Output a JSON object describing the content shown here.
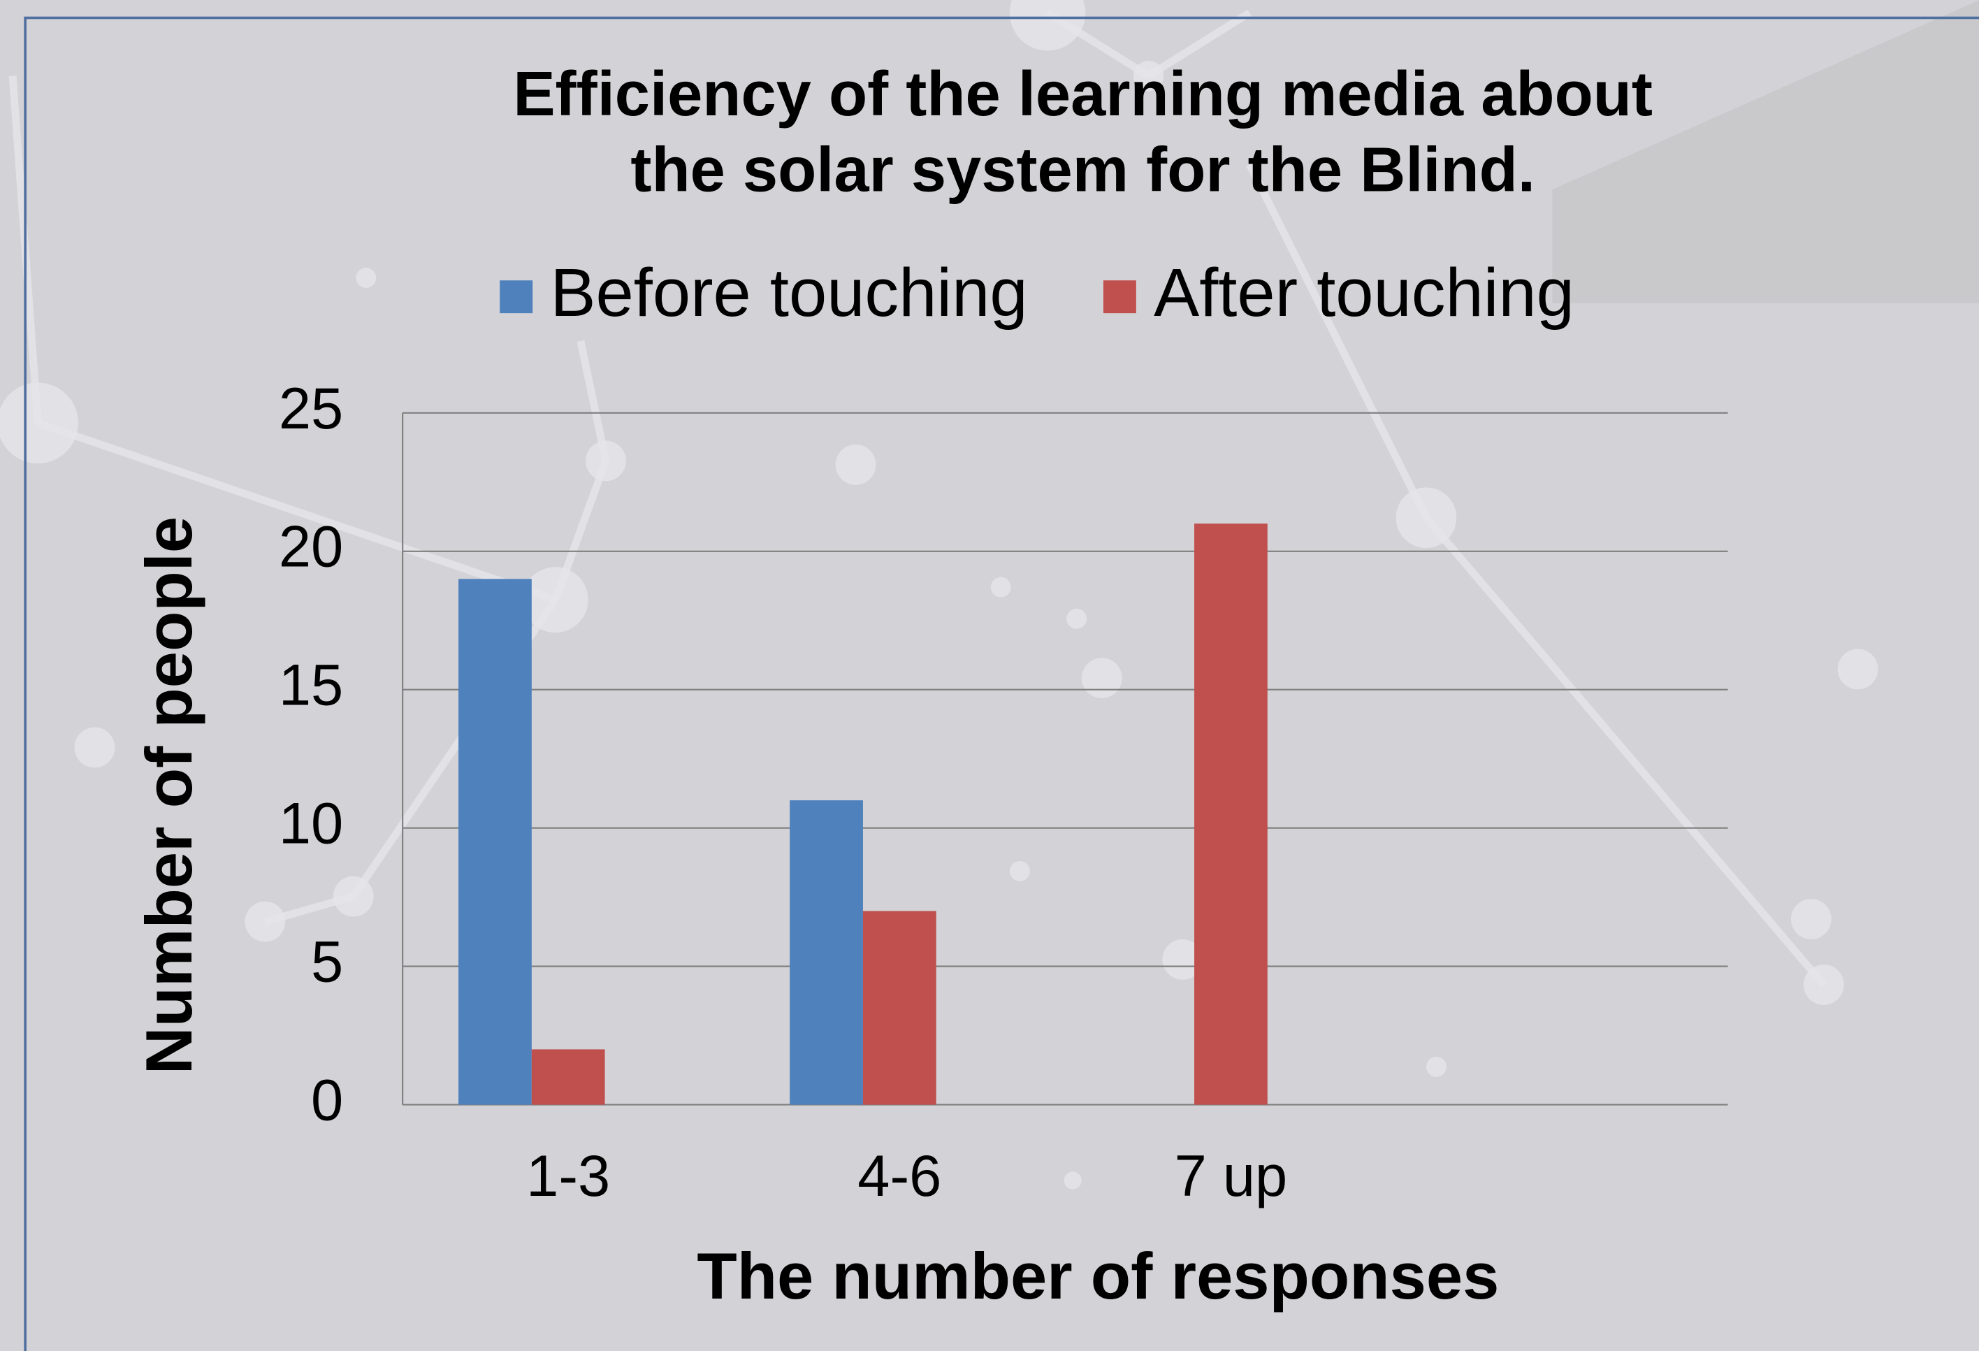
{
  "chart_data": {
    "type": "bar",
    "title": [
      "Efficiency of the learning media about",
      "the  solar system for the Blind."
    ],
    "x_label": "The number of responses",
    "y_label": "Number of people",
    "categories": [
      "1-3",
      "4-6",
      "7 up",
      null
    ],
    "series": [
      {
        "name": "Before touching",
        "color": "#4f81bd",
        "values": [
          19,
          11,
          0,
          null
        ]
      },
      {
        "name": "After touching",
        "color": "#c0504d",
        "values": [
          2,
          7,
          21,
          null
        ]
      }
    ],
    "ylim": [
      0,
      25
    ],
    "yticks": [
      0,
      5,
      10,
      15,
      20,
      25
    ],
    "grid": true,
    "legend": "top"
  }
}
